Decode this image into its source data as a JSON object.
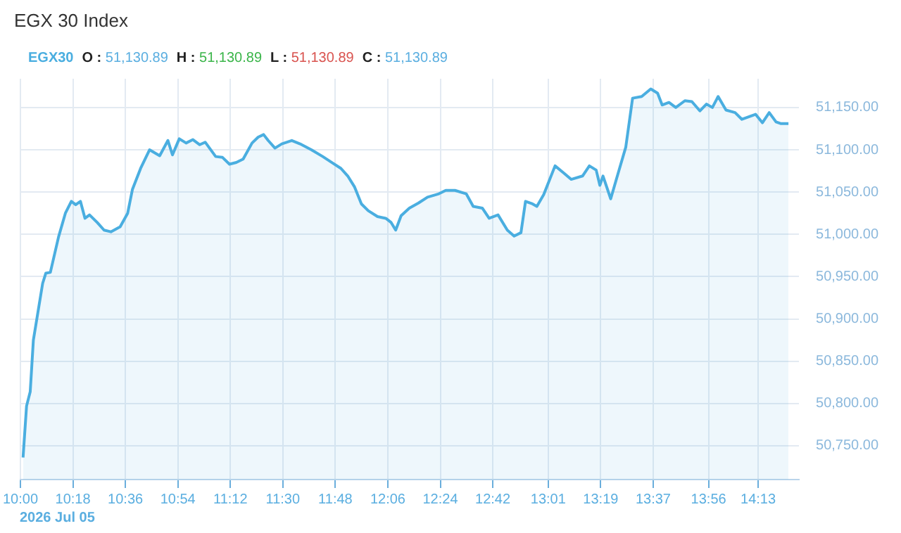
{
  "chart_data": {
    "type": "area",
    "title": "EGX 30 Index",
    "annotations": [
      "O : 51,130.89",
      "H : 51,130.89",
      "L : 51,130.89",
      "C : 51,130.89",
      "2026 Jul 05"
    ],
    "legend": "top left",
    "grid": true,
    "marker": "none",
    "line_style": "solid",
    "xlim": [
      10,
      14.45
    ],
    "xticks": [
      {
        "value": 10,
        "label": "10:00"
      },
      {
        "value": 10.3,
        "label": "10:18"
      },
      {
        "value": 10.6,
        "label": "10:36"
      },
      {
        "value": 10.9,
        "label": "10:54"
      },
      {
        "value": 11.2,
        "label": "11:12"
      },
      {
        "value": 11.5,
        "label": "11:30"
      },
      {
        "value": 11.8,
        "label": "11:48"
      },
      {
        "value": 12.1,
        "label": "12:06"
      },
      {
        "value": 12.4,
        "label": "12:24"
      },
      {
        "value": 12.7,
        "label": "12:42"
      },
      {
        "value": 13.0167,
        "label": "13:01"
      },
      {
        "value": 13.3167,
        "label": "13:19"
      },
      {
        "value": 13.6167,
        "label": "13:37"
      },
      {
        "value": 13.9333,
        "label": "13:56"
      },
      {
        "value": 14.2167,
        "label": "14:13"
      }
    ],
    "ylim": [
      50710,
      51184
    ],
    "yticks": [
      {
        "value": 50750,
        "label": "50,750.00"
      },
      {
        "value": 50800,
        "label": "50,800.00"
      },
      {
        "value": 50850,
        "label": "50,850.00"
      },
      {
        "value": 50900,
        "label": "50,900.00"
      },
      {
        "value": 50950,
        "label": "50,950.00"
      },
      {
        "value": 51000,
        "label": "51,000.00"
      },
      {
        "value": 51050,
        "label": "51,050.00"
      },
      {
        "value": 51100,
        "label": "51,100.00"
      },
      {
        "value": 51150,
        "label": "51,150.00"
      }
    ],
    "x": [
      10.015,
      10.035,
      10.056,
      10.074,
      10.127,
      10.145,
      10.171,
      10.218,
      10.257,
      10.291,
      10.316,
      10.343,
      10.369,
      10.395,
      10.439,
      10.478,
      10.517,
      10.57,
      10.613,
      10.64,
      10.687,
      10.738,
      10.796,
      10.843,
      10.869,
      10.908,
      10.947,
      10.986,
      11.025,
      11.056,
      11.116,
      11.155,
      11.195,
      11.234,
      11.273,
      11.324,
      11.359,
      11.39,
      11.416,
      11.455,
      11.494,
      11.551,
      11.598,
      11.663,
      11.728,
      11.78,
      11.832,
      11.871,
      11.91,
      11.949,
      11.988,
      12.041,
      12.088,
      12.119,
      12.145,
      12.176,
      12.223,
      12.275,
      12.327,
      12.392,
      12.431,
      12.484,
      12.548,
      12.588,
      12.64,
      12.679,
      12.73,
      12.783,
      12.822,
      12.861,
      12.887,
      12.927,
      12.952,
      12.991,
      13.056,
      13.109,
      13.148,
      13.213,
      13.252,
      13.291,
      13.312,
      13.33,
      13.374,
      13.416,
      13.46,
      13.499,
      13.551,
      13.603,
      13.642,
      13.668,
      13.707,
      13.746,
      13.798,
      13.838,
      13.884,
      13.921,
      13.955,
      13.988,
      14.033,
      14.085,
      14.124,
      14.163,
      14.202,
      14.241,
      14.28,
      14.319,
      14.345,
      14.39
    ],
    "series": [
      {
        "name": "EGX30",
        "color": "#4aaee0",
        "values": [
          50736,
          50797,
          50814,
          50875,
          50942,
          50954,
          50955,
          50997,
          51025,
          51039,
          51035,
          51039,
          51019,
          51023,
          51014,
          51005,
          51003,
          51009,
          51025,
          51053,
          51078,
          51100,
          51093,
          51111,
          51094,
          51113,
          51108,
          51112,
          51106,
          51109,
          51092,
          51091,
          51083,
          51085,
          51089,
          51108,
          51115,
          51118,
          51111,
          51102,
          51107,
          51111,
          51107,
          51100,
          51092,
          51085,
          51078,
          51069,
          51056,
          51036,
          51028,
          51021,
          51019,
          51014,
          51005,
          51022,
          51031,
          51037,
          51044,
          51048,
          51052,
          51052,
          51048,
          51033,
          51031,
          51019,
          51023,
          51005,
          50998,
          51002,
          51039,
          51036,
          51033,
          51047,
          51081,
          51072,
          51065,
          51069,
          51081,
          51076,
          51058,
          51069,
          51042,
          51072,
          51103,
          51161,
          51163,
          51172,
          51167,
          51153,
          51156,
          51150,
          51158,
          51157,
          51146,
          51154,
          51150,
          51163,
          51147,
          51144,
          51136,
          51139,
          51142,
          51132,
          51144,
          51133,
          51131,
          51131
        ]
      }
    ]
  }
}
